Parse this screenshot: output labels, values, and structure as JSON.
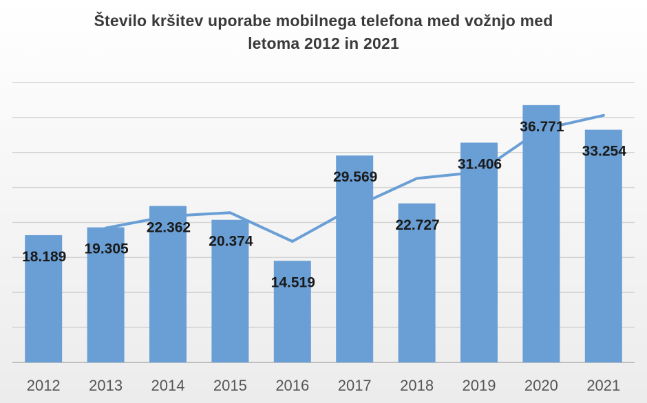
{
  "chart_data": {
    "type": "bar",
    "title_lines": [
      "Število kršitev uporabe mobilnega telefona med vožnjo med",
      "letoma 2012 in 2021"
    ],
    "categories": [
      "2012",
      "2013",
      "2014",
      "2015",
      "2016",
      "2017",
      "2018",
      "2019",
      "2020",
      "2021"
    ],
    "series": [
      {
        "name": "Število kršitev",
        "type": "bar",
        "values": [
          18.189,
          19.305,
          22.362,
          20.374,
          14.519,
          29.569,
          22.727,
          31.406,
          36.771,
          33.254
        ],
        "labels": [
          "18.189",
          "19.305",
          "22.362",
          "20.374",
          "14.519",
          "29.569",
          "22.727",
          "31.406",
          "36.771",
          "33.254"
        ]
      },
      {
        "name": "Trend",
        "type": "line",
        "x": [
          "2013",
          "2014",
          "2015",
          "2016",
          "2017",
          "2018",
          "2019",
          "2020",
          "2021"
        ],
        "values": [
          19.2,
          20.9,
          21.4,
          17.3,
          22.2,
          26.3,
          27.2,
          33.3,
          35.3
        ]
      }
    ],
    "ylim": [
      0,
      40
    ],
    "ygrid_step": 5,
    "grid": true,
    "legend": "none",
    "colors": {
      "bar": "#6a9fd6",
      "line": "#6a9fd6",
      "grid": "#d4d4d4",
      "axis": "#bfbfbf"
    }
  }
}
